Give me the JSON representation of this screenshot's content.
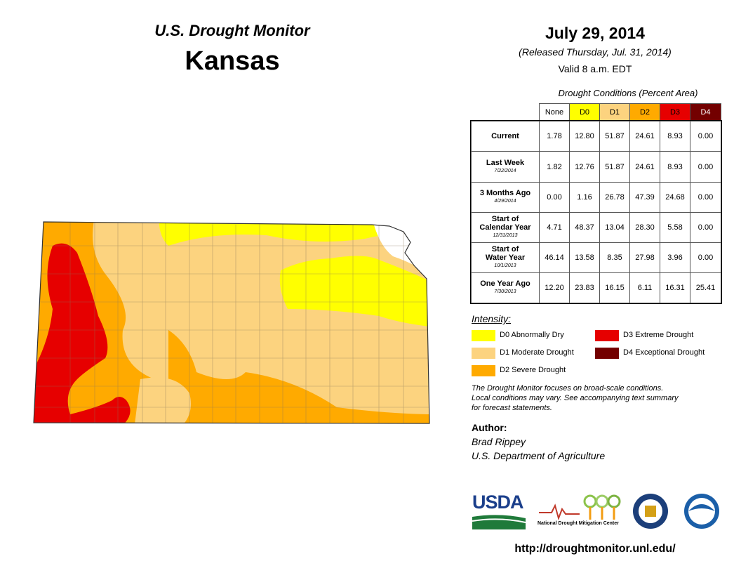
{
  "header": {
    "title": "U.S. Drought Monitor",
    "state": "Kansas",
    "date": "July 29, 2014",
    "released": "(Released Thursday, Jul. 31, 2014)",
    "valid": "Valid 8 a.m. EDT"
  },
  "table": {
    "caption": "Drought Conditions (Percent Area)",
    "columns": [
      "None",
      "D0",
      "D1",
      "D2",
      "D3",
      "D4"
    ],
    "rows": [
      {
        "label": [
          "Current"
        ],
        "values": [
          "1.78",
          "12.80",
          "51.87",
          "24.61",
          "8.93",
          "0.00"
        ]
      },
      {
        "label": [
          "Last Week"
        ],
        "date": "7/22/2014",
        "values": [
          "1.82",
          "12.76",
          "51.87",
          "24.61",
          "8.93",
          "0.00"
        ]
      },
      {
        "label": [
          "3 Months Ago"
        ],
        "date": "4/29/2014",
        "values": [
          "0.00",
          "1.16",
          "26.78",
          "47.39",
          "24.68",
          "0.00"
        ]
      },
      {
        "label": [
          "Start of",
          "Calendar Year"
        ],
        "date": "12/31/2013",
        "values": [
          "4.71",
          "48.37",
          "13.04",
          "28.30",
          "5.58",
          "0.00"
        ]
      },
      {
        "label": [
          "Start of",
          "Water Year"
        ],
        "date": "10/1/2013",
        "values": [
          "46.14",
          "13.58",
          "8.35",
          "27.98",
          "3.96",
          "0.00"
        ]
      },
      {
        "label": [
          "One Year Ago"
        ],
        "date": "7/30/2013",
        "values": [
          "12.20",
          "23.83",
          "16.15",
          "6.11",
          "16.31",
          "25.41"
        ]
      }
    ]
  },
  "legend": {
    "title": "Intensity:",
    "items": [
      "D0 Abnormally Dry",
      "D1 Moderate Drought",
      "D2 Severe Drought",
      "D3 Extreme Drought",
      "D4 Exceptional Drought"
    ]
  },
  "note": [
    "The Drought Monitor focuses on broad-scale conditions.",
    "Local conditions may vary. See accompanying text summary",
    "for forecast statements."
  ],
  "author": {
    "heading": "Author:",
    "lines": [
      "Brad Rippey",
      "U.S. Department of Agriculture"
    ]
  },
  "logos": {
    "usda": "USDA",
    "ndmc": "National Drought Mitigation Center"
  },
  "url": "http://droughtmonitor.unl.edu/"
}
